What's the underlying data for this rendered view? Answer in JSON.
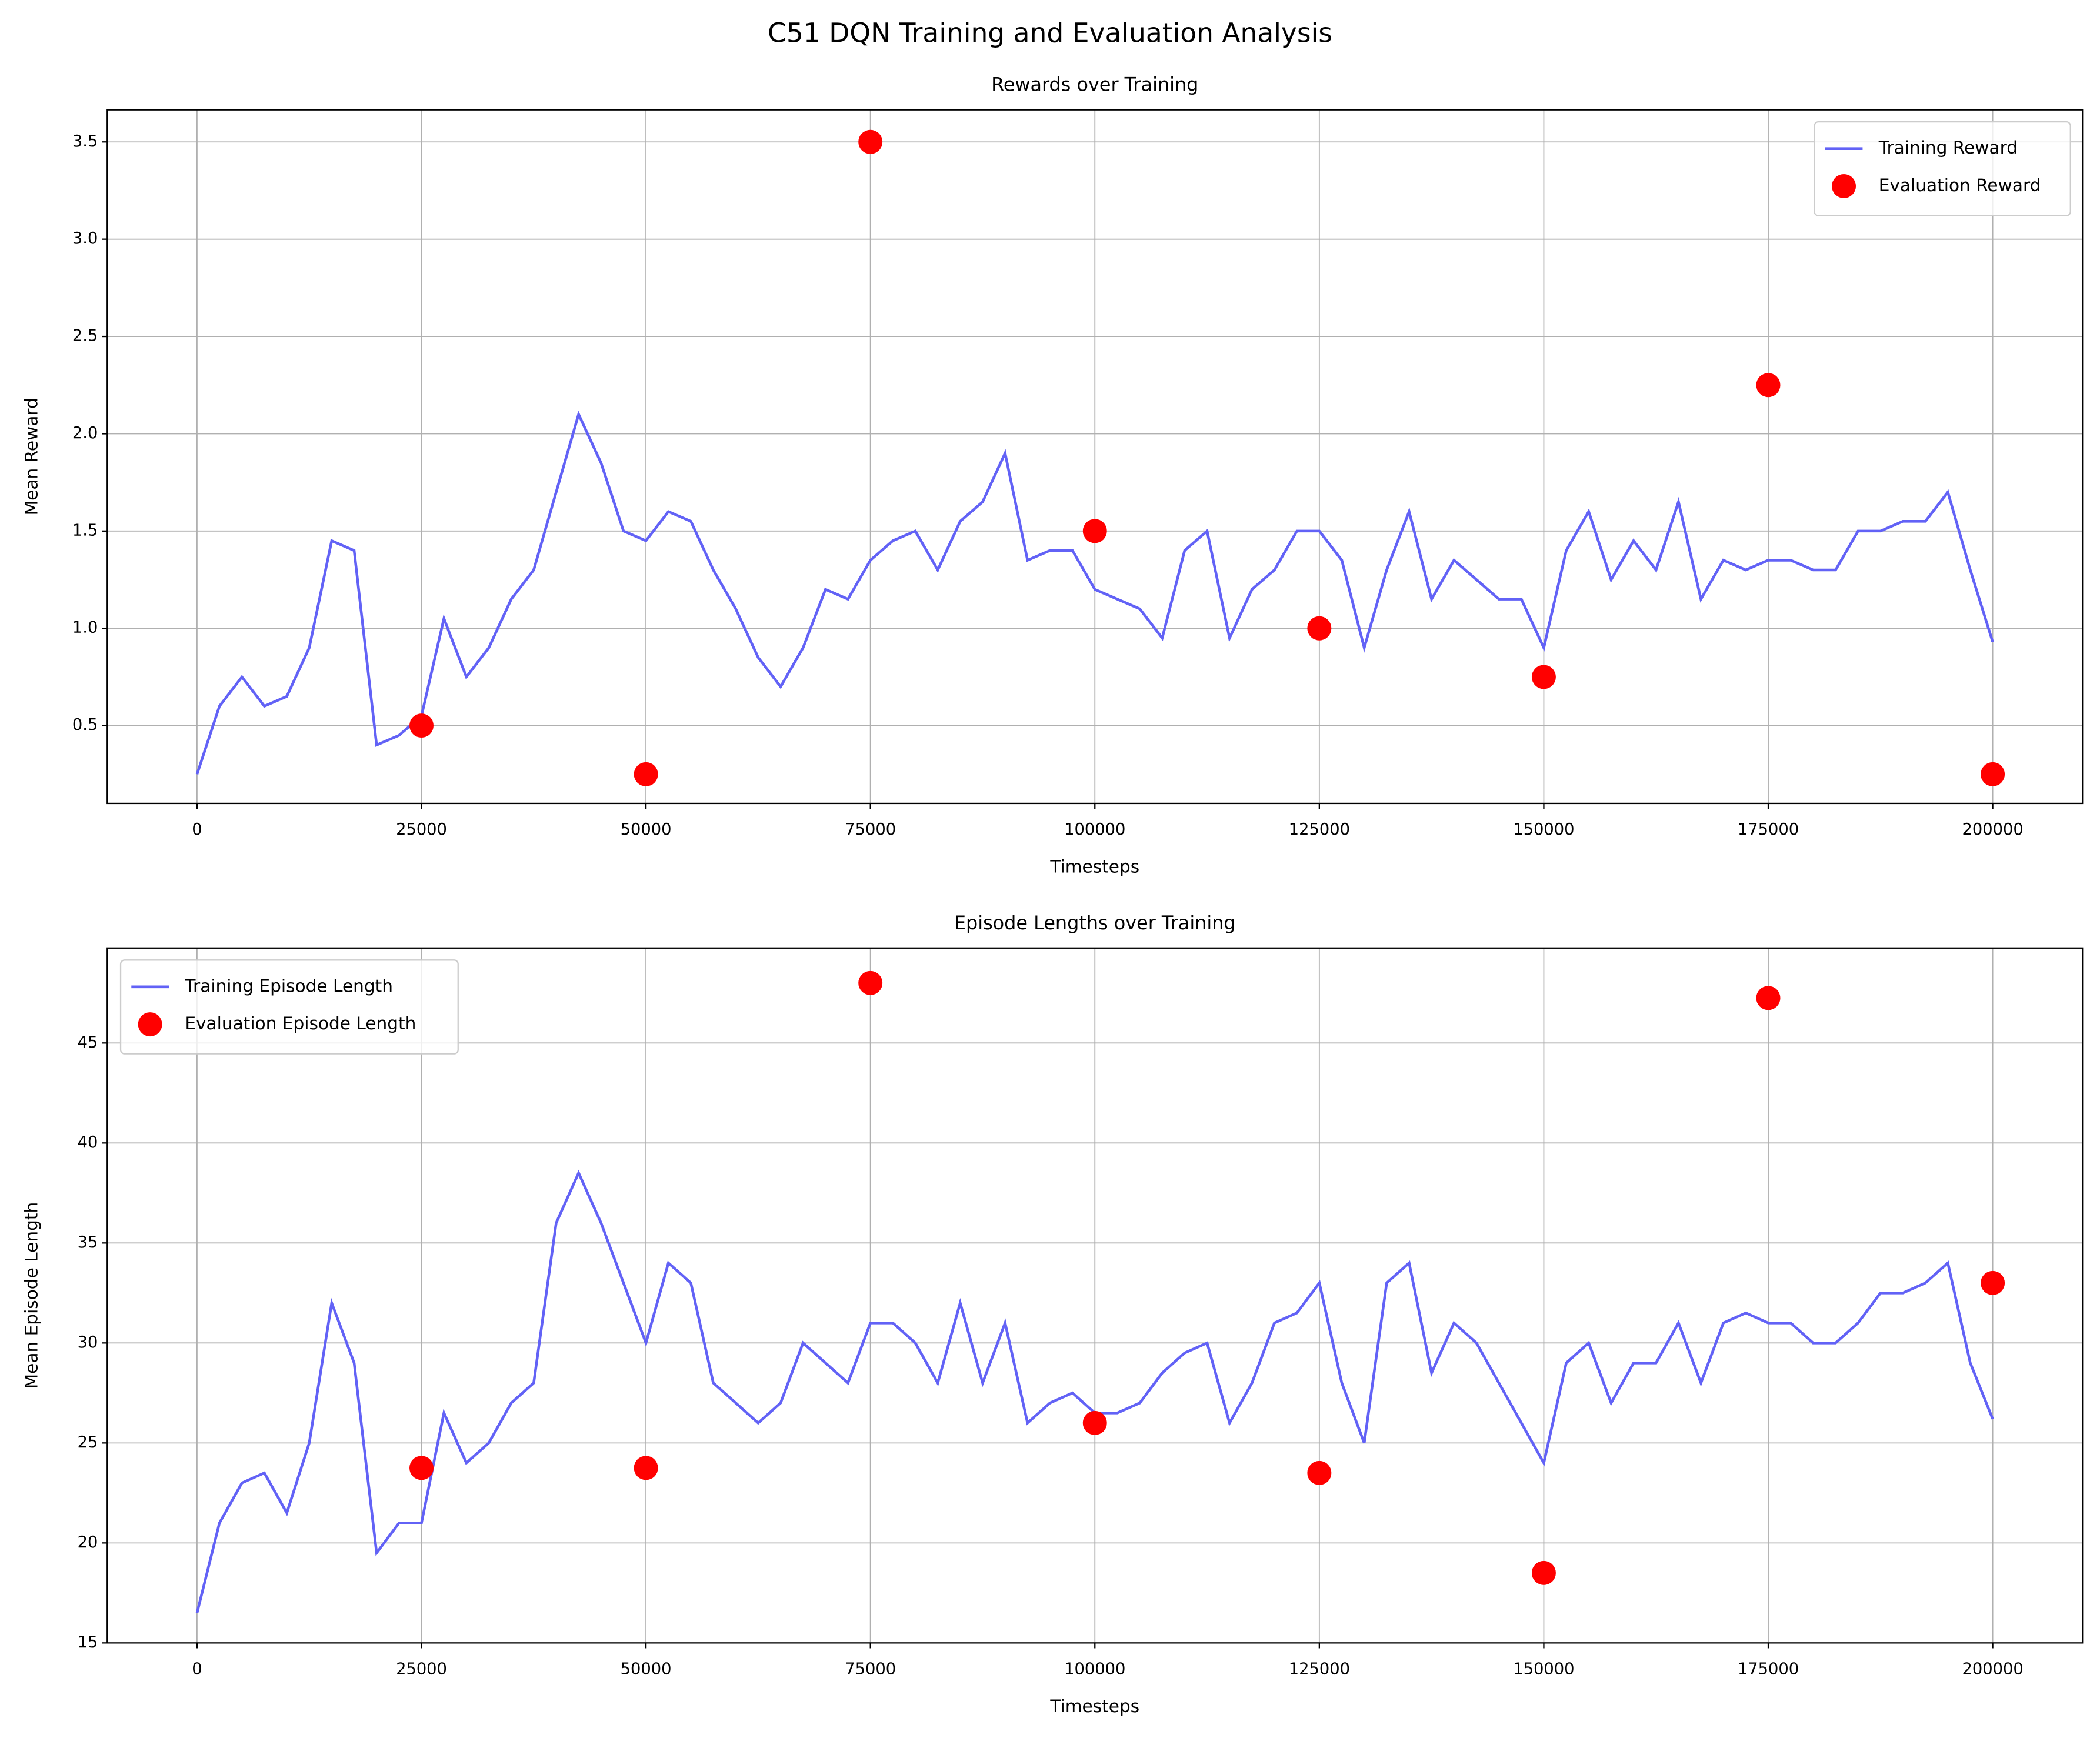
{
  "title": "C51 DQN Training and Evaluation Analysis",
  "chart_data": [
    {
      "type": "line",
      "title": "Rewards over Training",
      "xlabel": "Timesteps",
      "ylabel": "Mean Reward",
      "xlim": [
        -10000,
        210000
      ],
      "ylim": [
        0.1,
        3.665
      ],
      "xticks": [
        0,
        25000,
        50000,
        75000,
        100000,
        125000,
        150000,
        175000,
        200000
      ],
      "yticks": [
        0.5,
        {
          "value": 1,
          "label": "1.0"
        },
        1.5,
        {
          "value": 2,
          "label": "2.0"
        },
        2.5,
        {
          "value": 3,
          "label": "3.0"
        },
        3.5
      ],
      "grid": true,
      "legend": "upper right",
      "series": [
        {
          "name": "Training Reward",
          "type": "line",
          "color": "#6262f6",
          "x": [
            0,
            2500,
            5000,
            7500,
            10000,
            12500,
            15000,
            17500,
            20000,
            22500,
            25000,
            27500,
            30000,
            32500,
            35000,
            37500,
            40000,
            42500,
            45000,
            47500,
            50000,
            52500,
            55000,
            57500,
            60000,
            62500,
            65000,
            67500,
            70000,
            72500,
            75000,
            77500,
            80000,
            82500,
            85000,
            87500,
            90000,
            92500,
            95000,
            97500,
            100000,
            102500,
            105000,
            107500,
            110000,
            112500,
            115000,
            117500,
            120000,
            122500,
            125000,
            127500,
            130000,
            132500,
            135000,
            137500,
            140000,
            142500,
            145000,
            147500,
            150000,
            152500,
            155000,
            157500,
            160000,
            162500,
            165000,
            167500,
            170000,
            172500,
            175000,
            177500,
            180000,
            182500,
            185000,
            187500,
            190000,
            192500,
            195000,
            197500,
            200000
          ],
          "values": [
            0.25,
            0.6,
            0.75,
            0.6,
            0.65,
            0.9,
            1.45,
            1.4,
            0.4,
            0.45,
            0.55,
            1.05,
            0.75,
            0.9,
            1.15,
            1.3,
            1.7,
            2.1,
            1.85,
            1.5,
            1.45,
            1.6,
            1.55,
            1.3,
            1.1,
            0.85,
            0.7,
            0.9,
            1.2,
            1.15,
            1.35,
            1.45,
            1.5,
            1.3,
            1.55,
            1.65,
            1.9,
            1.35,
            1.4,
            1.4,
            1.2,
            1.15,
            1.1,
            0.95,
            1.4,
            1.5,
            0.95,
            1.2,
            1.3,
            1.5,
            1.5,
            1.35,
            0.9,
            1.3,
            1.6,
            1.15,
            1.35,
            1.25,
            1.15,
            1.15,
            0.9,
            1.4,
            1.6,
            1.25,
            1.45,
            1.3,
            1.65,
            1.15,
            1.35,
            1.3,
            1.35,
            1.35,
            1.3,
            1.3,
            1.5,
            1.5,
            1.55,
            1.55,
            1.7,
            1.3,
            0.93
          ]
        },
        {
          "name": "Evaluation Reward",
          "type": "scatter",
          "color": "#ff0000",
          "x": [
            25000,
            50000,
            75000,
            100000,
            125000,
            150000,
            175000,
            200000
          ],
          "values": [
            0.5,
            0.25,
            3.5,
            1.5,
            1.0,
            0.75,
            2.25,
            0.25
          ]
        }
      ]
    },
    {
      "type": "line",
      "title": "Episode Lengths over Training",
      "xlabel": "Timesteps",
      "ylabel": "Mean Episode Length",
      "xlim": [
        -10000,
        210000
      ],
      "ylim": [
        15,
        49.75
      ],
      "xticks": [
        0,
        25000,
        50000,
        75000,
        100000,
        125000,
        150000,
        175000,
        200000
      ],
      "yticks": [
        15,
        20,
        25,
        30,
        35,
        40,
        45
      ],
      "grid": true,
      "legend": "upper left",
      "series": [
        {
          "name": "Training Episode Length",
          "type": "line",
          "color": "#6262f6",
          "x": [
            0,
            2500,
            5000,
            7500,
            10000,
            12500,
            15000,
            17500,
            20000,
            22500,
            25000,
            27500,
            30000,
            32500,
            35000,
            37500,
            40000,
            42500,
            45000,
            47500,
            50000,
            52500,
            55000,
            57500,
            60000,
            62500,
            65000,
            67500,
            70000,
            72500,
            75000,
            77500,
            80000,
            82500,
            85000,
            87500,
            90000,
            92500,
            95000,
            97500,
            100000,
            102500,
            105000,
            107500,
            110000,
            112500,
            115000,
            117500,
            120000,
            122500,
            125000,
            127500,
            130000,
            132500,
            135000,
            137500,
            140000,
            142500,
            145000,
            147500,
            150000,
            152500,
            155000,
            157500,
            160000,
            162500,
            165000,
            167500,
            170000,
            172500,
            175000,
            177500,
            180000,
            182500,
            185000,
            187500,
            190000,
            192500,
            195000,
            197500,
            200000
          ],
          "values": [
            16.5,
            21,
            23,
            23.5,
            21.5,
            25,
            32,
            29,
            19.5,
            21,
            21,
            26.5,
            24,
            25,
            27,
            28,
            36,
            38.5,
            36,
            33,
            30,
            34,
            33,
            28,
            27,
            26,
            27,
            30,
            29,
            28,
            31,
            31,
            30,
            28,
            32,
            28,
            31,
            26,
            27,
            27.5,
            26.5,
            26.5,
            27,
            28.5,
            29.5,
            30,
            26,
            28,
            31,
            31.5,
            33,
            28,
            25,
            33,
            34,
            28.5,
            31,
            30,
            28,
            26,
            24,
            29,
            30,
            27,
            29,
            29,
            31,
            28,
            31,
            31.5,
            31,
            31,
            30,
            30,
            31,
            32.5,
            32.5,
            33,
            34,
            29,
            26.2
          ]
        },
        {
          "name": "Evaluation Episode Length",
          "type": "scatter",
          "color": "#ff0000",
          "x": [
            25000,
            50000,
            75000,
            100000,
            125000,
            150000,
            175000,
            200000
          ],
          "values": [
            23.75,
            23.75,
            48,
            26,
            23.5,
            18.5,
            47.25,
            33
          ]
        }
      ]
    }
  ]
}
